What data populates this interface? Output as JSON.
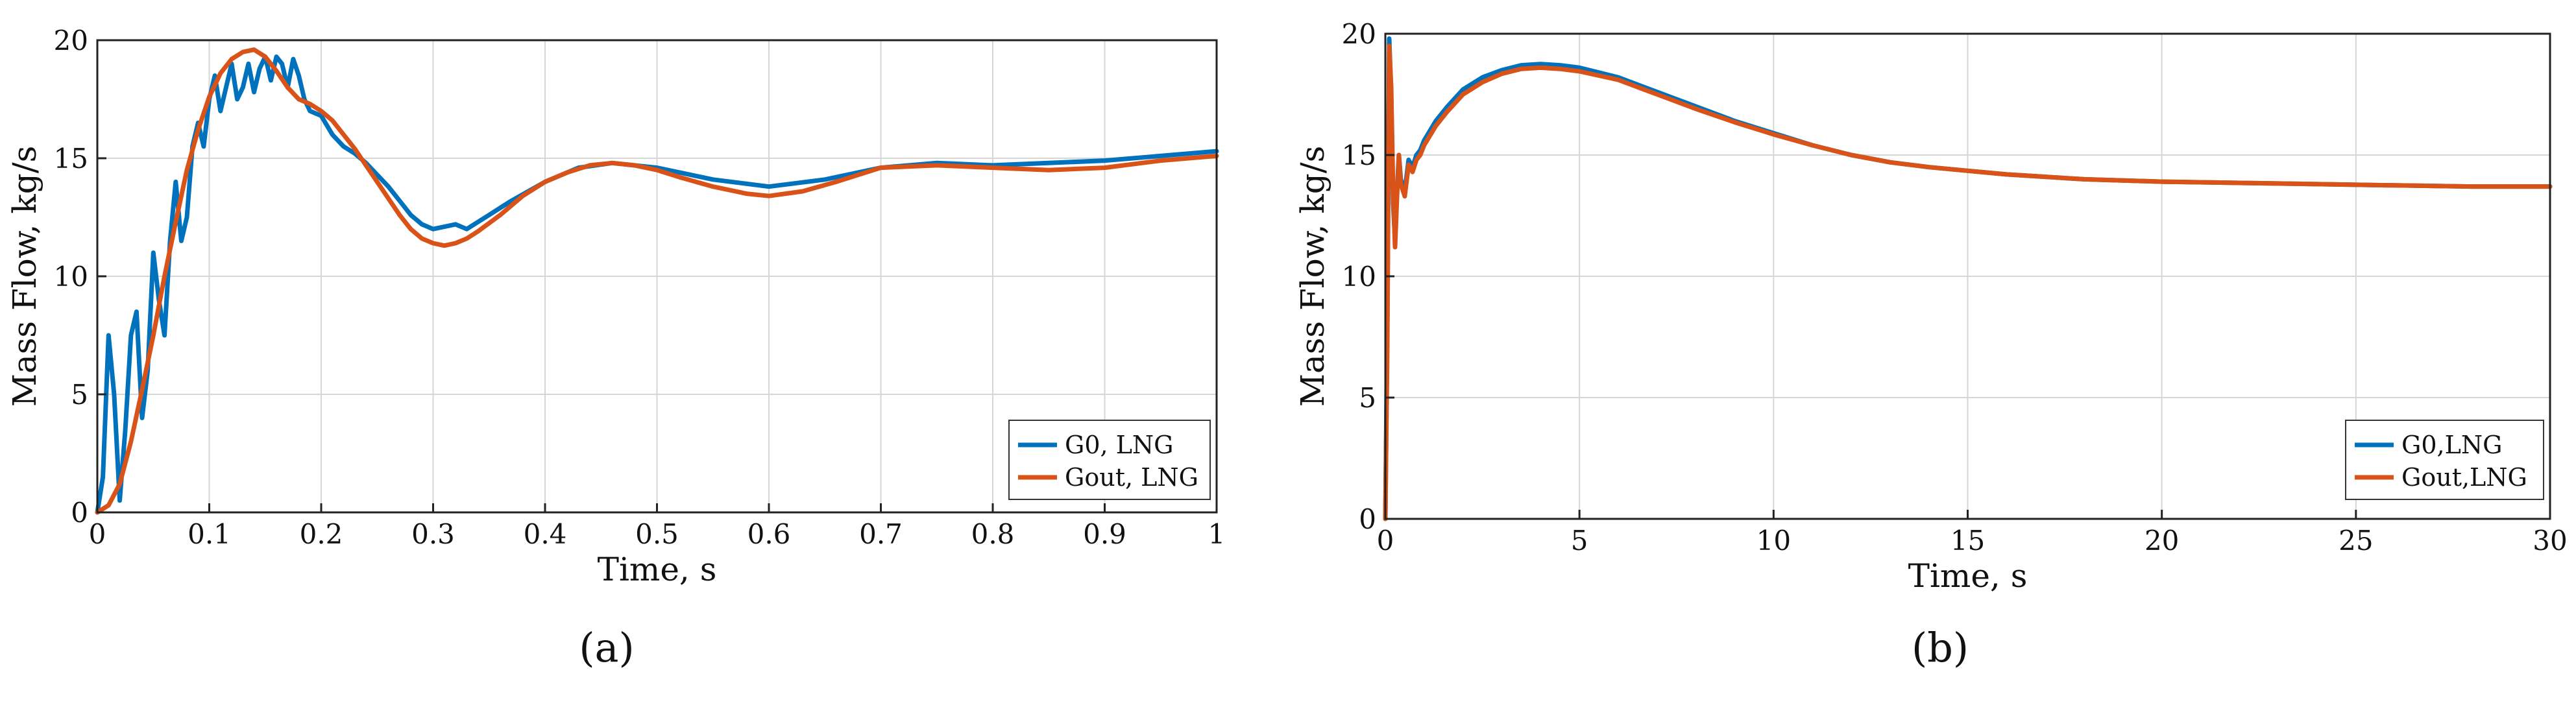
{
  "chart_data": [
    {
      "type": "line",
      "panel": "a",
      "caption": "(a)",
      "title": "",
      "xlabel": "Time, s",
      "ylabel": "Mass Flow, kg/s",
      "xlim": [
        0,
        1
      ],
      "ylim": [
        0,
        20
      ],
      "xticks": [
        0,
        0.1,
        0.2,
        0.3,
        0.4,
        0.5,
        0.6,
        0.7,
        0.8,
        0.9,
        1
      ],
      "xtick_labels": [
        "0",
        "0.1",
        "0.2",
        "0.3",
        "0.4",
        "0.5",
        "0.6",
        "0.7",
        "0.8",
        "0.9",
        "1"
      ],
      "yticks": [
        0,
        5,
        10,
        15,
        20
      ],
      "ytick_labels": [
        "0",
        "5",
        "10",
        "15",
        "20"
      ],
      "grid": true,
      "legend_position": "bottom-right",
      "series": [
        {
          "name": "G0, LNG",
          "color": "#0072BD",
          "x": [
            0,
            0.005,
            0.01,
            0.015,
            0.02,
            0.025,
            0.03,
            0.035,
            0.04,
            0.045,
            0.05,
            0.055,
            0.06,
            0.065,
            0.07,
            0.075,
            0.08,
            0.085,
            0.09,
            0.095,
            0.1,
            0.105,
            0.11,
            0.115,
            0.12,
            0.125,
            0.13,
            0.135,
            0.14,
            0.145,
            0.15,
            0.155,
            0.16,
            0.165,
            0.17,
            0.175,
            0.18,
            0.185,
            0.19,
            0.2,
            0.21,
            0.22,
            0.23,
            0.24,
            0.25,
            0.26,
            0.27,
            0.28,
            0.29,
            0.3,
            0.31,
            0.32,
            0.33,
            0.34,
            0.35,
            0.37,
            0.4,
            0.43,
            0.46,
            0.5,
            0.55,
            0.6,
            0.65,
            0.7,
            0.75,
            0.8,
            0.85,
            0.9,
            0.95,
            1.0
          ],
          "y": [
            0,
            1.5,
            7.5,
            5.0,
            0.5,
            3.5,
            7.5,
            8.5,
            4.0,
            6.0,
            11.0,
            9.0,
            7.5,
            11.5,
            14.0,
            11.5,
            12.5,
            15.5,
            16.5,
            15.5,
            17.5,
            18.5,
            17.0,
            18.0,
            19.0,
            17.5,
            18.0,
            19.0,
            17.8,
            18.8,
            19.3,
            18.3,
            19.3,
            19.0,
            18.0,
            19.2,
            18.5,
            17.5,
            17.0,
            16.8,
            16.0,
            15.5,
            15.2,
            14.8,
            14.3,
            13.8,
            13.2,
            12.6,
            12.2,
            12.0,
            12.1,
            12.2,
            12.0,
            12.3,
            12.6,
            13.2,
            14.0,
            14.6,
            14.8,
            14.6,
            14.1,
            13.8,
            14.1,
            14.6,
            14.8,
            14.7,
            14.8,
            14.9,
            15.1,
            15.3
          ]
        },
        {
          "name": "Gout, LNG",
          "color": "#D95319",
          "x": [
            0,
            0.01,
            0.02,
            0.03,
            0.04,
            0.05,
            0.06,
            0.07,
            0.08,
            0.09,
            0.1,
            0.11,
            0.12,
            0.13,
            0.14,
            0.15,
            0.16,
            0.17,
            0.18,
            0.19,
            0.2,
            0.21,
            0.22,
            0.23,
            0.24,
            0.25,
            0.26,
            0.27,
            0.28,
            0.29,
            0.3,
            0.31,
            0.32,
            0.33,
            0.34,
            0.36,
            0.38,
            0.4,
            0.42,
            0.44,
            0.46,
            0.48,
            0.5,
            0.52,
            0.55,
            0.58,
            0.6,
            0.63,
            0.66,
            0.7,
            0.75,
            0.8,
            0.85,
            0.9,
            0.95,
            1.0
          ],
          "y": [
            0,
            0.3,
            1.2,
            3.0,
            5.2,
            7.5,
            10.0,
            12.3,
            14.5,
            16.2,
            17.6,
            18.6,
            19.2,
            19.5,
            19.6,
            19.3,
            18.7,
            18.0,
            17.5,
            17.3,
            17.0,
            16.6,
            16.0,
            15.4,
            14.7,
            14.0,
            13.3,
            12.6,
            12.0,
            11.6,
            11.4,
            11.3,
            11.4,
            11.6,
            11.9,
            12.6,
            13.4,
            14.0,
            14.4,
            14.7,
            14.8,
            14.7,
            14.5,
            14.2,
            13.8,
            13.5,
            13.4,
            13.6,
            14.0,
            14.6,
            14.7,
            14.6,
            14.5,
            14.6,
            14.9,
            15.1
          ]
        }
      ]
    },
    {
      "type": "line",
      "panel": "b",
      "caption": "(b)",
      "title": "",
      "xlabel": "Time, s",
      "ylabel": "Mass Flow, kg/s",
      "xlim": [
        0,
        30
      ],
      "ylim": [
        0,
        20
      ],
      "xticks": [
        0,
        5,
        10,
        15,
        20,
        25,
        30
      ],
      "xtick_labels": [
        "0",
        "5",
        "10",
        "15",
        "20",
        "25",
        "30"
      ],
      "yticks": [
        0,
        5,
        10,
        15,
        20
      ],
      "ytick_labels": [
        "0",
        "5",
        "10",
        "15",
        "20"
      ],
      "grid": true,
      "legend_position": "bottom-right",
      "series": [
        {
          "name": "G0,LNG",
          "color": "#0072BD",
          "x": [
            0,
            0.05,
            0.1,
            0.15,
            0.2,
            0.25,
            0.3,
            0.35,
            0.4,
            0.5,
            0.6,
            0.7,
            0.8,
            0.9,
            1.0,
            1.3,
            1.6,
            2.0,
            2.5,
            3.0,
            3.5,
            4.0,
            4.5,
            5.0,
            6.0,
            7.0,
            8.0,
            9.0,
            10.0,
            11.0,
            12.0,
            13.0,
            14.0,
            15.0,
            16.0,
            18.0,
            20.0,
            22.0,
            24.0,
            26.0,
            28.0,
            30.0
          ],
          "y": [
            0,
            8.0,
            19.8,
            17.5,
            13.0,
            11.5,
            13.5,
            15.0,
            14.0,
            13.5,
            14.8,
            14.5,
            15.0,
            15.2,
            15.6,
            16.4,
            17.0,
            17.7,
            18.2,
            18.5,
            18.7,
            18.75,
            18.7,
            18.6,
            18.2,
            17.6,
            17.0,
            16.4,
            15.9,
            15.4,
            15.0,
            14.7,
            14.5,
            14.35,
            14.2,
            14.0,
            13.9,
            13.85,
            13.8,
            13.75,
            13.7,
            13.7
          ]
        },
        {
          "name": "Gout,LNG",
          "color": "#D95319",
          "x": [
            0,
            0.05,
            0.1,
            0.15,
            0.2,
            0.25,
            0.3,
            0.35,
            0.4,
            0.5,
            0.6,
            0.7,
            0.8,
            0.9,
            1.0,
            1.3,
            1.6,
            2.0,
            2.5,
            3.0,
            3.5,
            4.0,
            4.5,
            5.0,
            6.0,
            7.0,
            8.0,
            9.0,
            10.0,
            11.0,
            12.0,
            13.0,
            14.0,
            15.0,
            16.0,
            18.0,
            20.0,
            22.0,
            24.0,
            26.0,
            28.0,
            30.0
          ],
          "y": [
            0,
            7.0,
            19.5,
            17.8,
            13.5,
            11.2,
            13.2,
            15.0,
            13.8,
            13.3,
            14.6,
            14.3,
            14.8,
            15.0,
            15.4,
            16.2,
            16.8,
            17.5,
            18.0,
            18.35,
            18.55,
            18.6,
            18.55,
            18.45,
            18.1,
            17.5,
            16.9,
            16.35,
            15.85,
            15.4,
            15.0,
            14.7,
            14.5,
            14.35,
            14.2,
            14.0,
            13.9,
            13.85,
            13.8,
            13.75,
            13.7,
            13.7
          ]
        }
      ]
    }
  ]
}
